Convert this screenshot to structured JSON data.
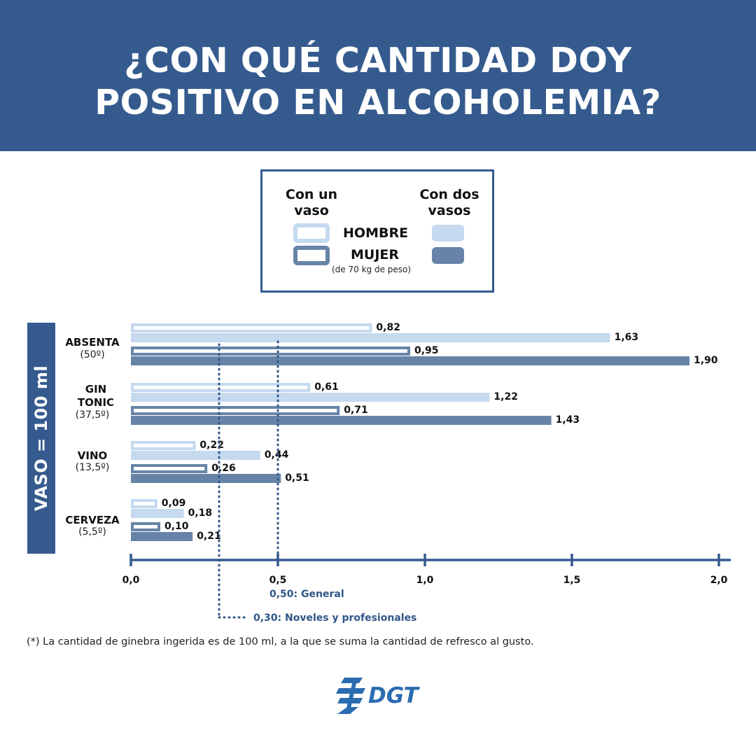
{
  "header": {
    "title_line1": "¿CON QUÉ CANTIDAD DOY",
    "title_line2": "POSITIVO EN ALCOHOLEMIA?"
  },
  "legend": {
    "one_glass": "Con un vaso",
    "two_glasses": "Con dos vasos",
    "man": "HOMBRE",
    "woman": "MUJER",
    "weight_note": "(de 70 kg de peso)"
  },
  "side_label": "VASO = 100 ml",
  "footnote": "(*) La cantidad de ginebra ingerida es de 100 ml, a la que se suma la cantidad de refresco al gusto.",
  "logo_text": "DGT",
  "colors": {
    "navy": "#355b8e",
    "light_blue": "#c5d9ef",
    "steel_blue": "#6784a8",
    "dotted_line": "#2f5687"
  },
  "chart_data": {
    "type": "bar",
    "orientation": "horizontal",
    "categories": [
      {
        "name": "ABSENTA",
        "degree": "(50º)"
      },
      {
        "name": "GIN TONIC",
        "degree": "(37,5º)"
      },
      {
        "name": "VINO",
        "degree": "(13,5º)"
      },
      {
        "name": "CERVEZA",
        "degree": "(5,5º)"
      }
    ],
    "series": [
      {
        "key": "man_one",
        "values": [
          0.82,
          0.61,
          0.22,
          0.09
        ],
        "labels": [
          "0,82",
          "0,61",
          "0,22",
          "0,09"
        ]
      },
      {
        "key": "man_two",
        "values": [
          1.63,
          1.22,
          0.44,
          0.18
        ],
        "labels": [
          "1,63",
          "1,22",
          "0,44",
          "0,18"
        ]
      },
      {
        "key": "woman_one",
        "values": [
          0.95,
          0.71,
          0.26,
          0.1
        ],
        "labels": [
          "0,95",
          "0,71",
          "0,26",
          "0,10"
        ]
      },
      {
        "key": "woman_two",
        "values": [
          1.9,
          1.43,
          0.51,
          0.21
        ],
        "labels": [
          "1,90",
          "1,43",
          "0,51",
          "0,21"
        ]
      }
    ],
    "xlim": [
      0,
      2.0
    ],
    "xticks": [
      0,
      0.5,
      1.0,
      1.5,
      2.0
    ],
    "xtick_labels": [
      "0,0",
      "0,5",
      "1,0",
      "1,5",
      "2,0"
    ],
    "reference_lines": [
      {
        "value": 0.5,
        "label": "0,50: General"
      },
      {
        "value": 0.3,
        "label": "0,30: Noveles y profesionales"
      }
    ]
  }
}
